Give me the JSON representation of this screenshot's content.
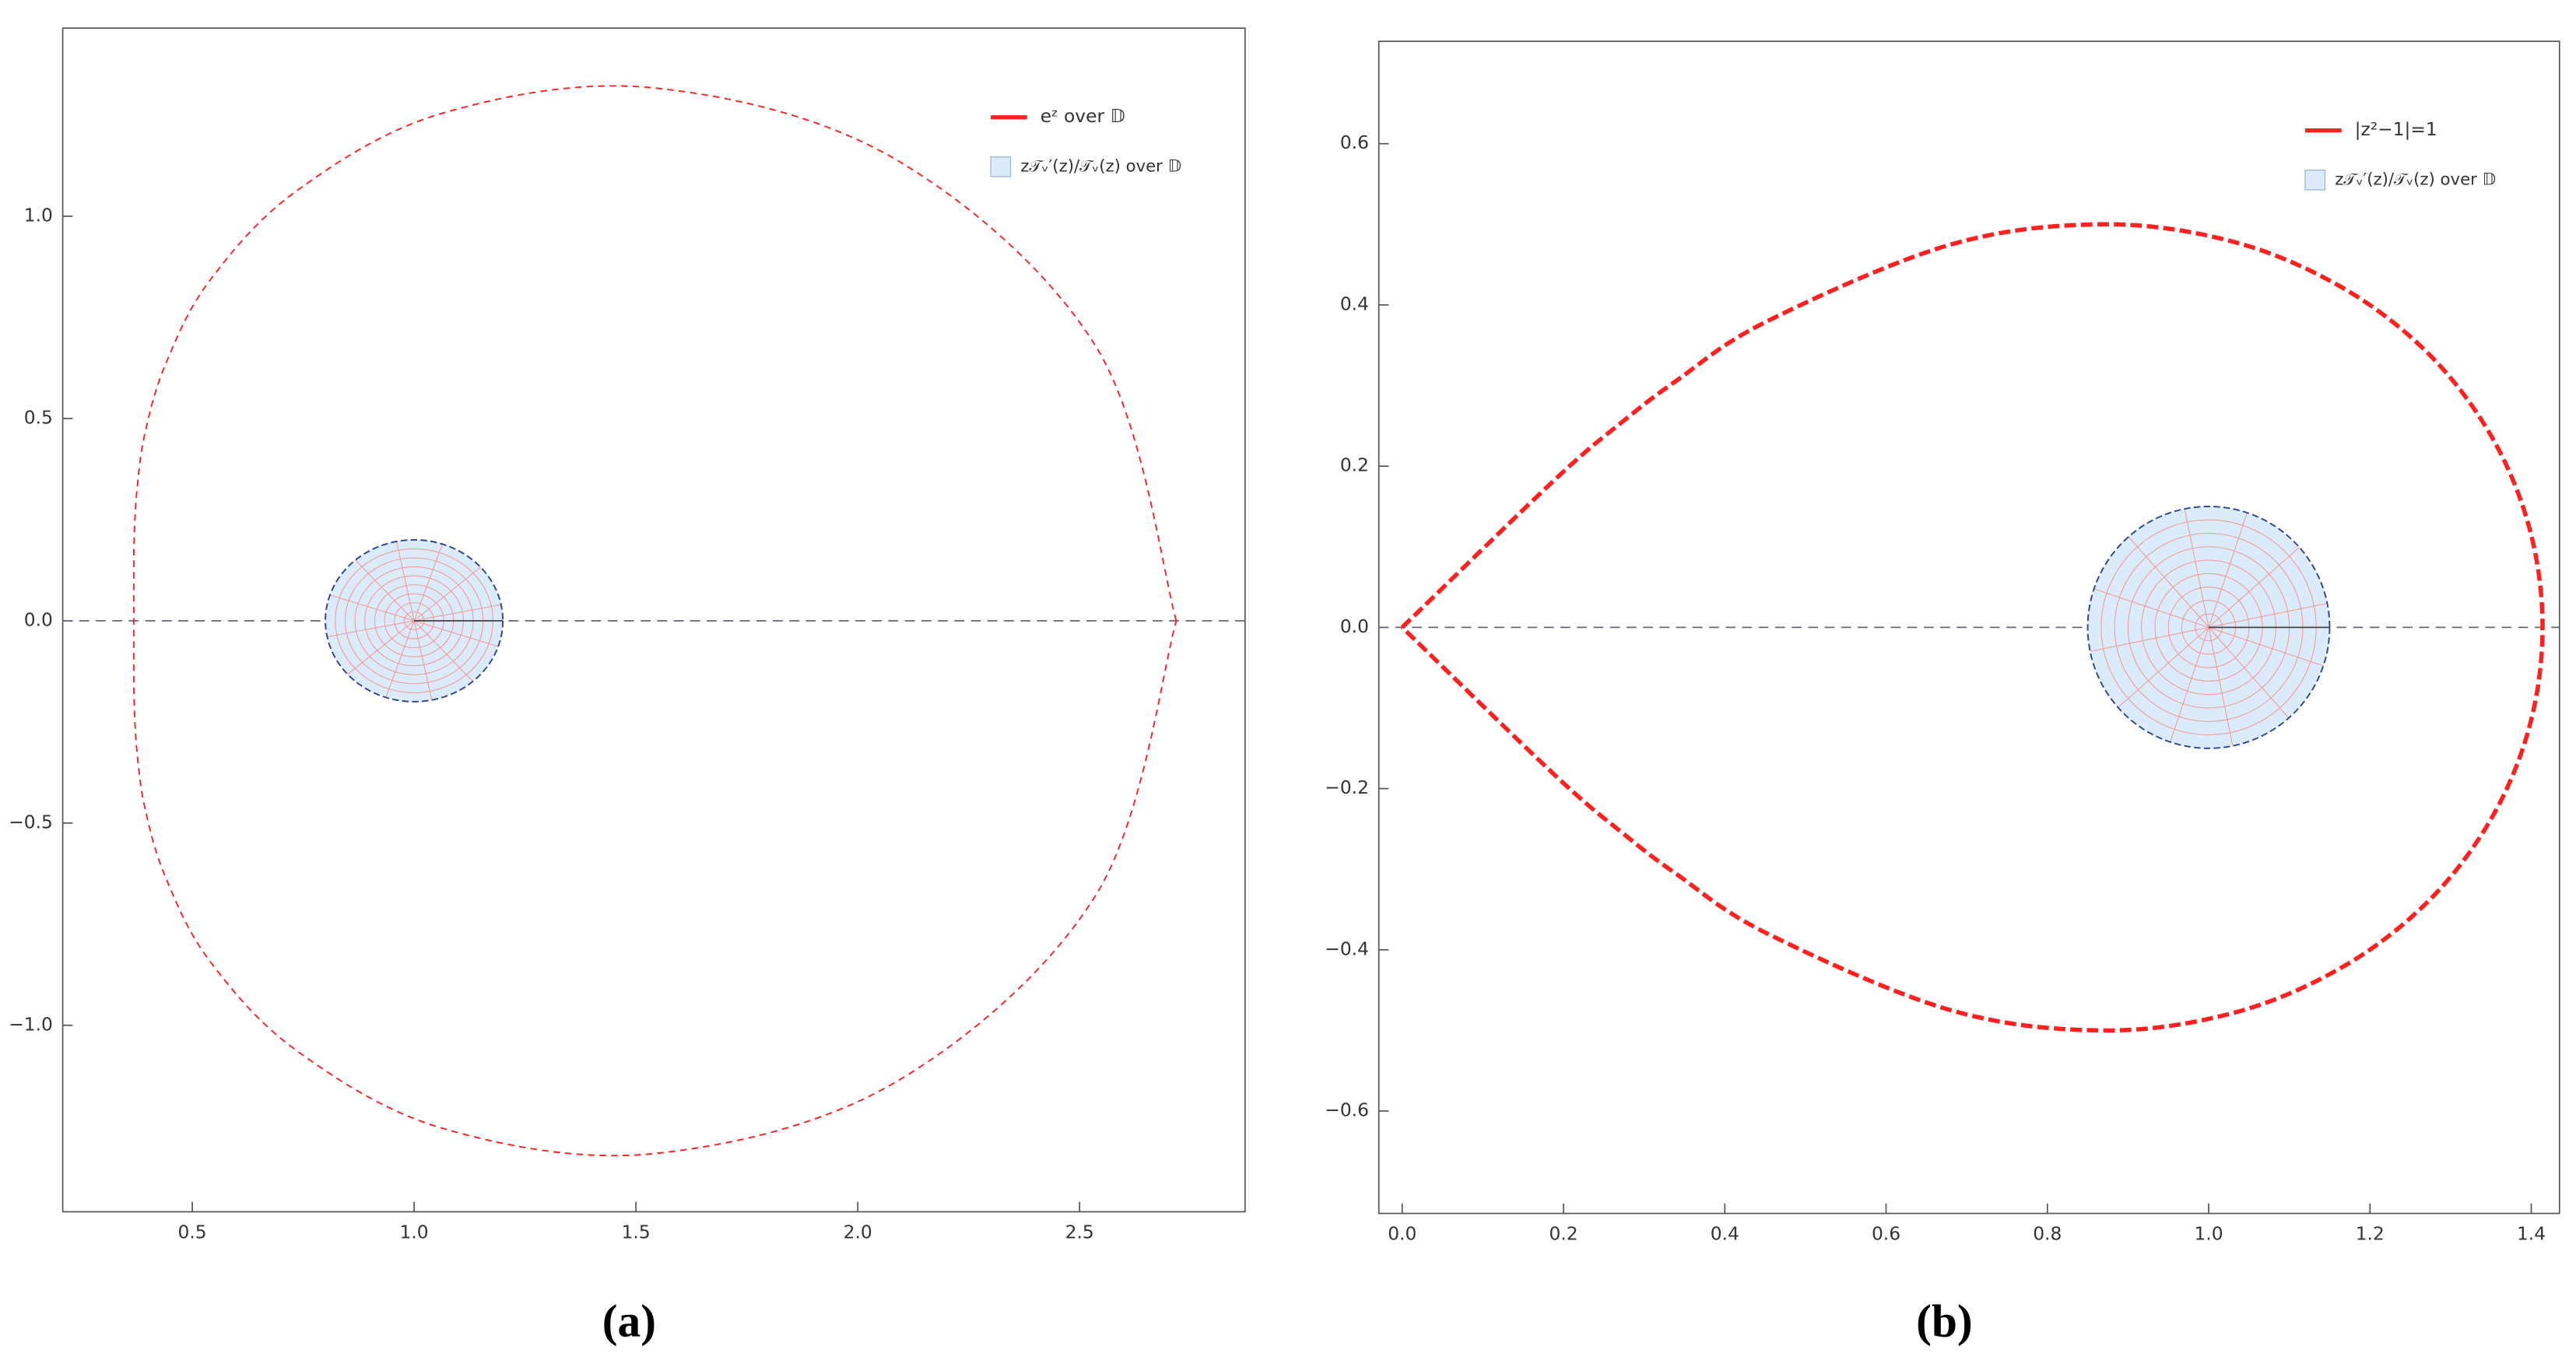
{
  "chart_data": [
    {
      "type": "line",
      "caption": "(a)",
      "legend": "upper right",
      "xlim": [
        0.208,
        2.873
      ],
      "ylim": [
        -1.461,
        1.465
      ],
      "xticks": [
        {
          "value": 0.5,
          "label": "0.5"
        },
        {
          "value": 1,
          "label": "1.0"
        },
        {
          "value": 1.5,
          "label": "1.5"
        },
        {
          "value": 2,
          "label": "2.0"
        },
        {
          "value": 2.5,
          "label": "2.5"
        }
      ],
      "yticks": [
        {
          "value": -1,
          "label": "−1.0"
        },
        {
          "value": -0.5,
          "label": "−0.5"
        },
        {
          "value": 0,
          "label": "0.0"
        },
        {
          "value": 0.5,
          "label": "0.5"
        },
        {
          "value": 1,
          "label": "1.0"
        }
      ],
      "series": [
        {
          "name": "eᶻ over 𝔻",
          "color": "#ff2020",
          "x": [
            2.718,
            2.54,
            2.086,
            1.542,
            1.068,
            0.738,
            0.54,
            0.44,
            0.393,
            0.375,
            0.369,
            0.368,
            0.368,
            0.368,
            0.369,
            0.375,
            0.393,
            0.44,
            0.54,
            0.738,
            1.068,
            1.542,
            2.086,
            2.54,
            2.718
          ],
          "values": [
            0,
            0.672,
            1.14,
            1.317,
            1.256,
            1.065,
            0.842,
            0.635,
            0.462,
            0.32,
            0.202,
            0.097,
            0,
            -0.097,
            -0.202,
            -0.32,
            -0.462,
            -0.635,
            -0.842,
            -1.065,
            -1.256,
            -1.317,
            -1.14,
            -0.672,
            0
          ]
        }
      ],
      "disc": {
        "name": "z𝒯ᵥ′(z)/𝒯ᵥ(z) over 𝔻",
        "color": "#dcebfa",
        "center": [
          1,
          0
        ],
        "radius": 0.2
      }
    },
    {
      "type": "line",
      "caption": "(b)",
      "legend": "upper right",
      "xlim": [
        -0.029,
        1.435
      ],
      "ylim": [
        -0.727,
        0.727
      ],
      "xticks": [
        {
          "value": 0,
          "label": "0.0"
        },
        0.2,
        0.4,
        0.6,
        0.8,
        {
          "value": 1,
          "label": "1.0"
        },
        1.2,
        1.4
      ],
      "yticks": [
        {
          "value": -0.6,
          "label": "−0.6"
        },
        {
          "value": -0.4,
          "label": "−0.4"
        },
        {
          "value": -0.2,
          "label": "−0.2"
        },
        {
          "value": 0,
          "label": "0.0"
        },
        0.2,
        0.4,
        0.6
      ],
      "series": [
        {
          "name": "|z²−1|=1",
          "color": "#ff2020",
          "x": [
            0,
            0.19,
            0.273,
            0.34,
            0.451,
            0.677,
            0.866,
            1.028,
            1.163,
            1.271,
            1.35,
            1.398,
            1.414,
            1.398,
            1.35,
            1.271,
            1.163,
            1.028,
            0.866,
            0.677,
            0.451,
            0.34,
            0.273,
            0.19,
            0
          ],
          "values": [
            0,
            0.184,
            0.255,
            0.306,
            0.379,
            0.474,
            0.5,
            0.479,
            0.423,
            0.341,
            0.238,
            0.122,
            0,
            -0.122,
            -0.238,
            -0.341,
            -0.423,
            -0.479,
            -0.5,
            -0.474,
            -0.379,
            -0.306,
            -0.255,
            -0.184,
            0
          ]
        }
      ],
      "disc": {
        "name": "z𝒯ᵥ′(z)/𝒯ᵥ(z) over 𝔻",
        "color": "#dcebfa",
        "center": [
          1,
          0
        ],
        "radius": 0.15
      }
    }
  ]
}
